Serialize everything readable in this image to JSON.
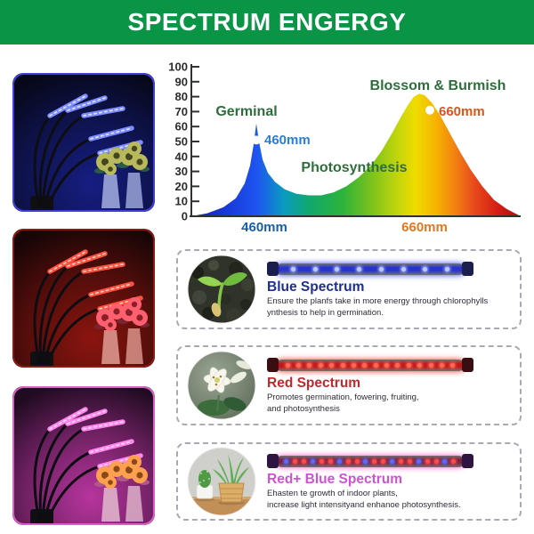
{
  "header": {
    "title": "SPECTRUM ENGERGY"
  },
  "theme": {
    "banner_green": "#0a9446",
    "card_border": "#a8acb2",
    "chart_axis": "#2e3233",
    "label_green": "#2f6e3c",
    "label_blue": "#2a7fd4",
    "label_orange": "#d4571e"
  },
  "chart_data": {
    "type": "area",
    "title": "SPECTRUM ENGERGY",
    "xlabel": "",
    "ylabel": "",
    "ylim": [
      0,
      100
    ],
    "ytick_step": 10,
    "grid": false,
    "peaks": [
      {
        "label": "Germinal",
        "wavelength": "460mm",
        "peak_value": 62
      },
      {
        "label": "Blossom & Burmish",
        "wavelength": "660mm",
        "peak_value": 82
      }
    ],
    "curve": [
      [
        0,
        0
      ],
      [
        18,
        2
      ],
      [
        36,
        6
      ],
      [
        50,
        12
      ],
      [
        60,
        22
      ],
      [
        66,
        34
      ],
      [
        70,
        48
      ],
      [
        73,
        62
      ],
      [
        76,
        50
      ],
      [
        80,
        38
      ],
      [
        86,
        29
      ],
      [
        94,
        23
      ],
      [
        105,
        18
      ],
      [
        118,
        15
      ],
      [
        132,
        14
      ],
      [
        146,
        14
      ],
      [
        160,
        16
      ],
      [
        174,
        20
      ],
      [
        188,
        26
      ],
      [
        202,
        34
      ],
      [
        214,
        44
      ],
      [
        226,
        56
      ],
      [
        236,
        67
      ],
      [
        244,
        75
      ],
      [
        250,
        80
      ],
      [
        256,
        82
      ],
      [
        262,
        81
      ],
      [
        270,
        76
      ],
      [
        280,
        67
      ],
      [
        290,
        56
      ],
      [
        302,
        43
      ],
      [
        314,
        31
      ],
      [
        327,
        20
      ],
      [
        340,
        11
      ],
      [
        354,
        5
      ],
      [
        370,
        0
      ]
    ],
    "gradient_stops": [
      {
        "o": 0.0,
        "c": "#1b1f9e"
      },
      {
        "o": 0.1,
        "c": "#1836d6"
      },
      {
        "o": 0.2,
        "c": "#1e55f0"
      },
      {
        "o": 0.28,
        "c": "#0a9bc0"
      },
      {
        "o": 0.36,
        "c": "#11a86c"
      },
      {
        "o": 0.46,
        "c": "#2db33a"
      },
      {
        "o": 0.55,
        "c": "#7ec31b"
      },
      {
        "o": 0.63,
        "c": "#c6d60a"
      },
      {
        "o": 0.68,
        "c": "#f0dc00"
      },
      {
        "o": 0.74,
        "c": "#f6b500"
      },
      {
        "o": 0.8,
        "c": "#f28211"
      },
      {
        "o": 0.86,
        "c": "#e8491c"
      },
      {
        "o": 0.93,
        "c": "#d41e14"
      },
      {
        "o": 1.0,
        "c": "#a80f0f"
      }
    ],
    "markers": [
      {
        "x": 73,
        "v": 51
      },
      {
        "x": 268,
        "v": 71
      }
    ],
    "labels": [
      {
        "text": "Germinal",
        "x": 92,
        "y": 60,
        "color": "#2f6e3c",
        "size": 16,
        "anchor": "middle"
      },
      {
        "text": "460mm",
        "x": 112,
        "y": 92,
        "color": "#2a7fd4",
        "size": 15,
        "anchor": "start"
      },
      {
        "text": "Photosynthesis",
        "x": 213,
        "y": 123,
        "color": "#2f6e3c",
        "size": 16,
        "anchor": "middle"
      },
      {
        "text": "Blossom & Burmish",
        "x": 307,
        "y": 31,
        "color": "#2f6e3c",
        "size": 16,
        "anchor": "middle"
      },
      {
        "text": "660mm",
        "x": 308,
        "y": 60,
        "color": "#d4571e",
        "size": 15,
        "anchor": "start"
      }
    ],
    "x_tick_labels": [
      {
        "text": "460mm",
        "x": 112,
        "color": "#1a5fa8"
      },
      {
        "text": "660mm",
        "x": 292,
        "color": "#e07820"
      }
    ]
  },
  "photos": [
    {
      "name": "blue-led-grow-lamp",
      "bg": "#05060f",
      "glow": "#2431e0",
      "glow_strength": 0.55,
      "border": "#4040d8",
      "led": "#7d8cff",
      "led_dot": "#e8ecff",
      "vase": "#9aa4d8",
      "flower": "#b8b85c",
      "flower_center": "#44461f",
      "leaf": "#2c5a46"
    },
    {
      "name": "red-led-grow-lamp",
      "bg": "#0d0406",
      "glow": "#e02014",
      "glow_strength": 0.6,
      "border": "#8a1a12",
      "led": "#ff5040",
      "led_dot": "#ffd8c8",
      "vase": "#d8938a",
      "flower": "#ff6070",
      "flower_center": "#8a1f28",
      "leaf": "#7a2430"
    },
    {
      "name": "pink-led-grow-lamp",
      "bg": "#160818",
      "glow": "#e040c0",
      "glow_strength": 0.8,
      "border": "#d860c8",
      "led": "#ff86ec",
      "led_dot": "#ffe0fa",
      "vase": "#dcb0c8",
      "flower": "#ffa050",
      "flower_center": "#8a4a16",
      "leaf": "#b05888"
    }
  ],
  "cards": [
    {
      "title": "Blue Spectrum",
      "title_color": "#1e2f8f",
      "description": "Ensure the planfs take in more energy through chlorophylls\nynthesis to help in germination.",
      "bar": {
        "cap": "#1a1f4e",
        "tube": "#2633cf",
        "glow": "#3444ff",
        "leds": [
          "#bcc8ff",
          "#bcc8ff",
          "#bcc8ff",
          "#bcc8ff",
          "#bcc8ff",
          "#bcc8ff",
          "#bcc8ff",
          "#bcc8ff"
        ]
      }
    },
    {
      "title": "Red Spectrum",
      "title_color": "#c0282e",
      "description": "Promotes germination, fowering, fruiting,\nand photosynthesis",
      "bar": {
        "cap": "#3a0d12",
        "tube": "#c4161a",
        "glow": "#ff3020",
        "leds": [
          "#ff6a55",
          "#ff6a55",
          "#ff6a55",
          "#ff6a55",
          "#ff6a55",
          "#ff6a55",
          "#ff6a55",
          "#ff6a55",
          "#ff6a55",
          "#ff6a55",
          "#ff6a55",
          "#ff6a55",
          "#ff6a55",
          "#ff6a55",
          "#ff6a55",
          "#ff6a55"
        ]
      }
    },
    {
      "title": "Red+ Blue Spectrum",
      "title_color": "#cf52d2",
      "description": "Ehasten te growth of indoor plants,\nincrease light intensityand enhanoe photosynthesis.",
      "bar": {
        "cap": "#2e1440",
        "tube": "#7a1f3f",
        "glow": "#ff50c8",
        "leds": [
          "#5a6aff",
          "#ff4a4a",
          "#ff4a4a",
          "#5a6aff",
          "#ff4a4a",
          "#ff4a4a",
          "#5a6aff",
          "#ff4a4a",
          "#ff4a4a",
          "#5a6aff",
          "#ff4a4a",
          "#ff4a4a",
          "#5a6aff",
          "#ff4a4a",
          "#ff4a4a",
          "#5a6aff",
          "#ff4a4a",
          "#ff4a4a",
          "#5a6aff",
          "#ff4a4a"
        ]
      }
    }
  ]
}
